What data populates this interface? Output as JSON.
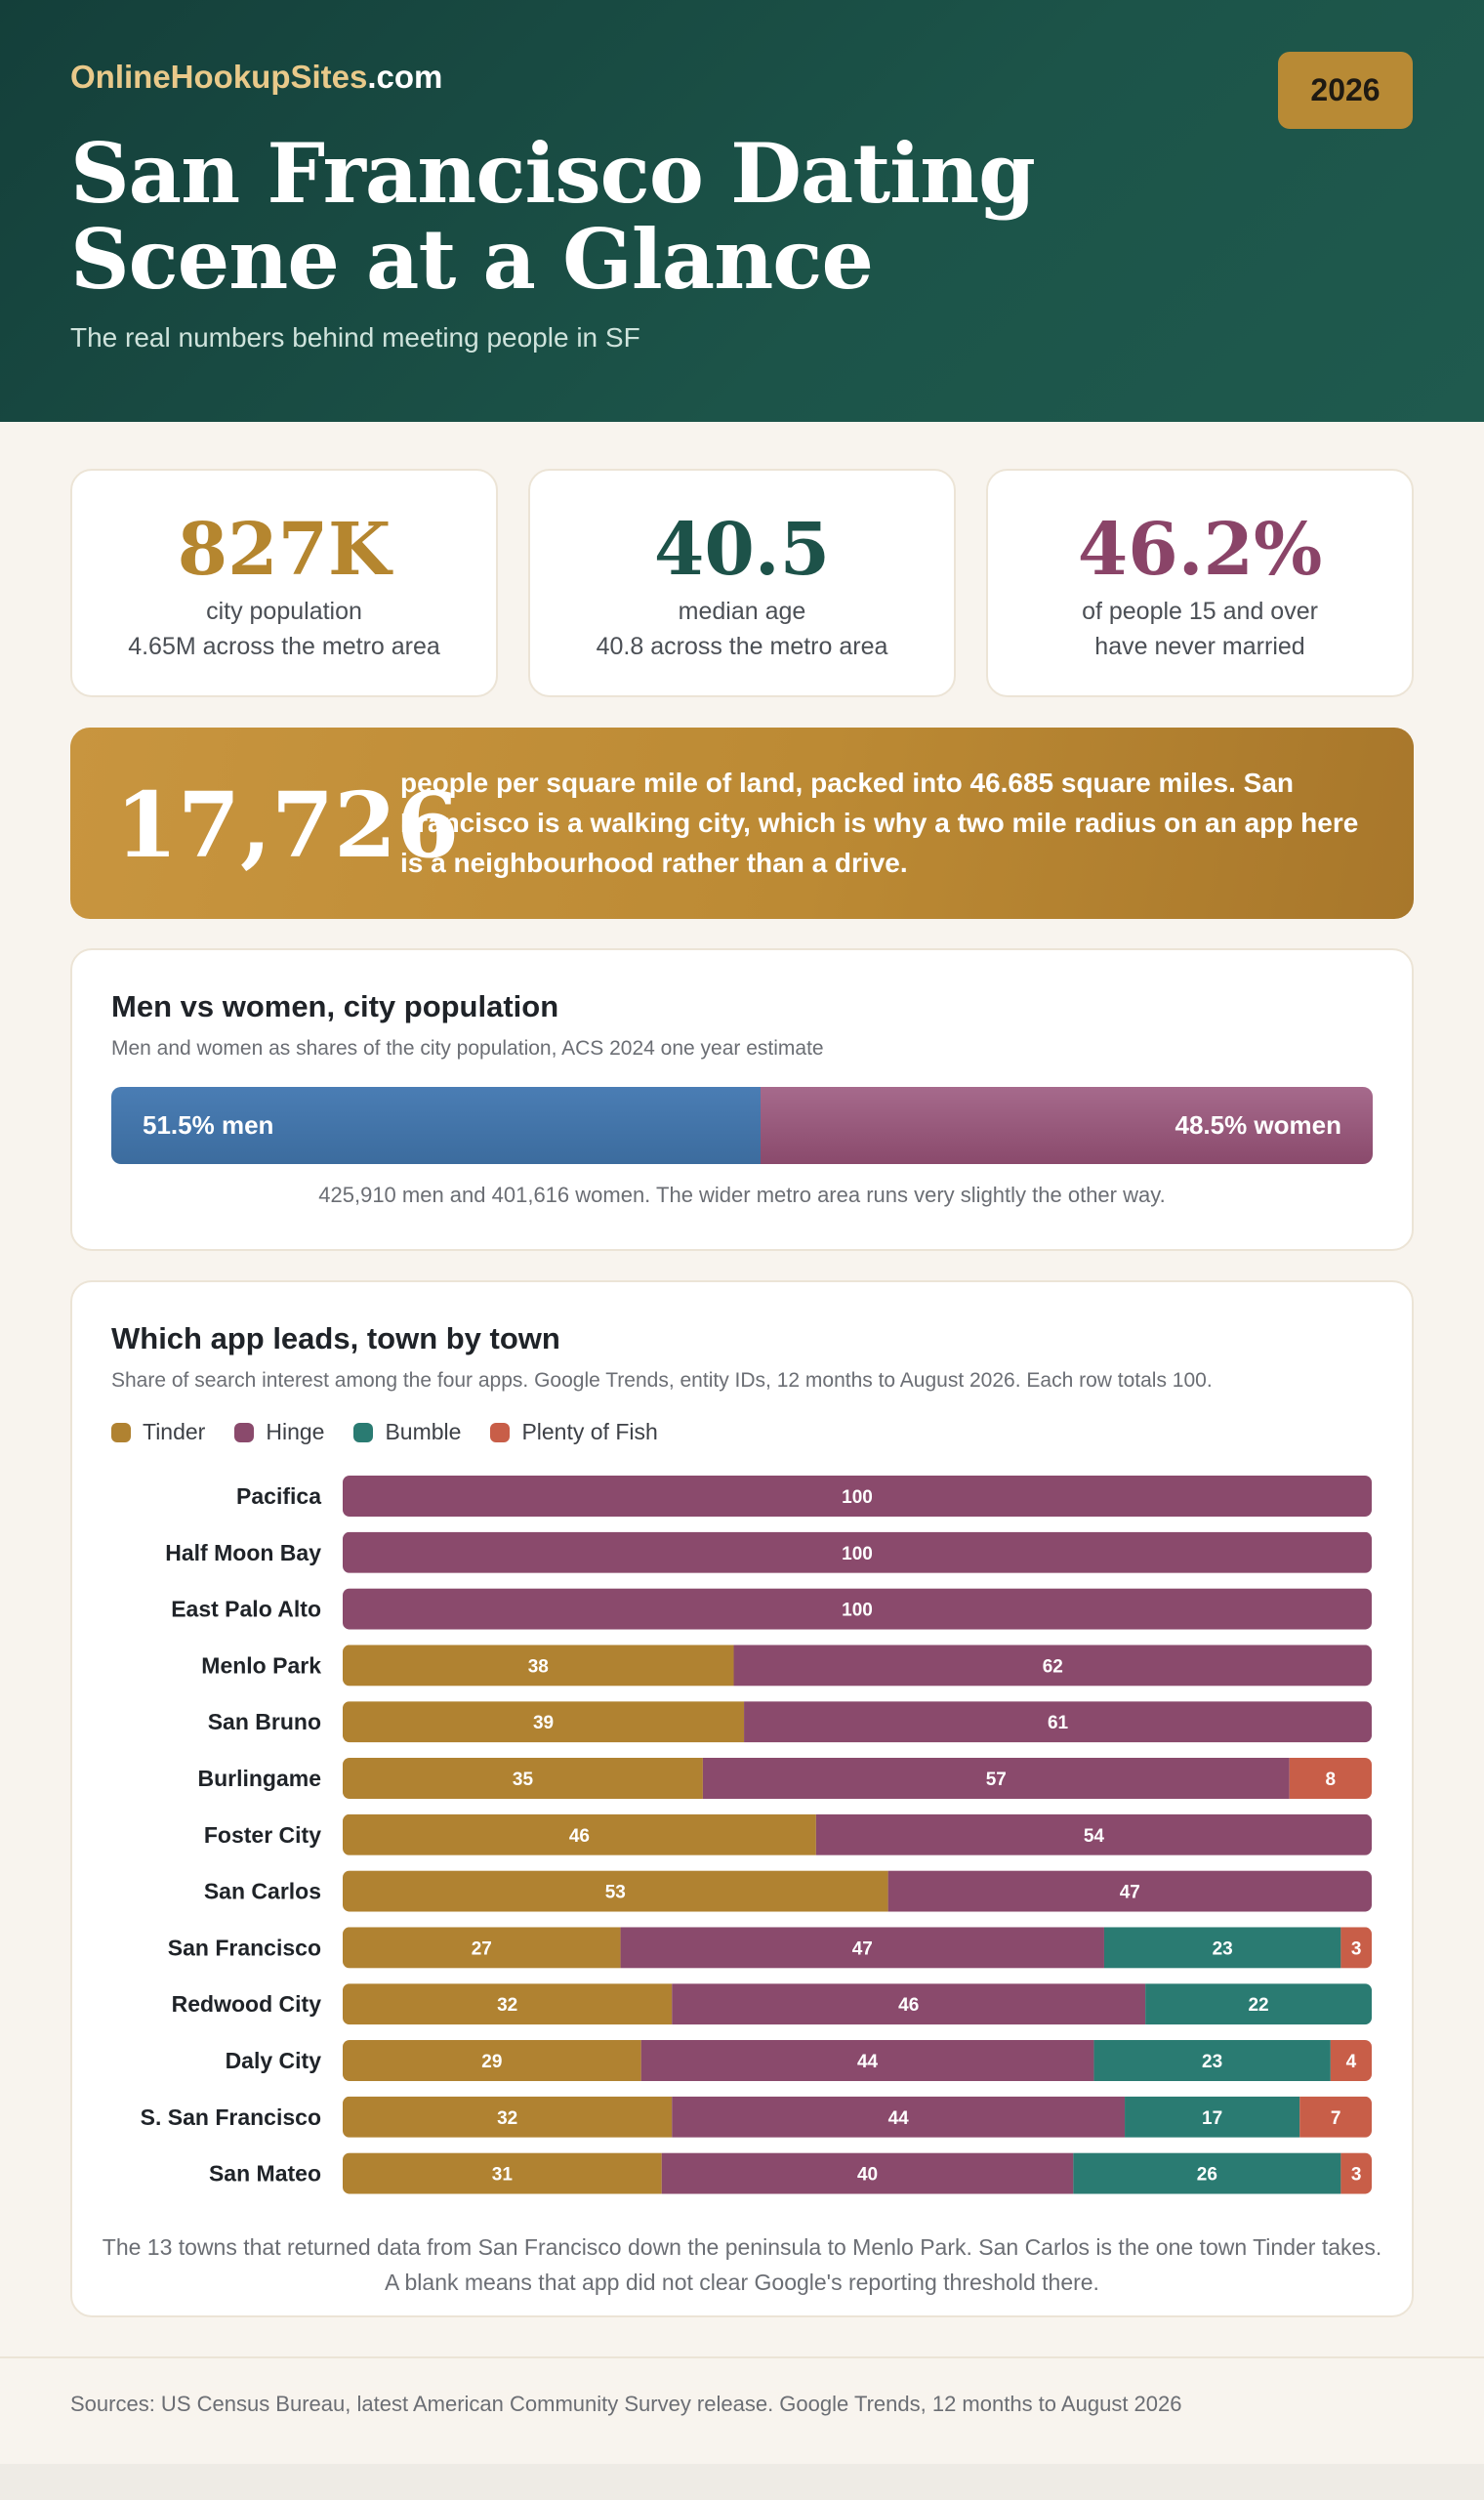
{
  "header": {
    "brand_main": "OnlineHookupSites",
    "brand_suffix": ".com",
    "year": "2026",
    "title_line1": "San Francisco Dating",
    "title_line2": "Scene at a Glance",
    "subtitle": "The real numbers behind meeting people in SF"
  },
  "stats": [
    {
      "value": "827K",
      "line1": "city population",
      "line2": "4.65M across the metro area",
      "color": "#b5862f"
    },
    {
      "value": "40.5",
      "line1": "median age",
      "line2": "40.8 across the metro area",
      "color": "#1d5249"
    },
    {
      "value": "46.2%",
      "line1": "of people 15 and over",
      "line2": "have never married",
      "color": "#8a4468"
    }
  ],
  "density": {
    "value": "17,726",
    "text": "people per square mile of land, packed into 46.685 square miles. San Francisco is a walking city, which is why a two mile radius on an app here is a neighbourhood rather than a drive."
  },
  "gender": {
    "title": "Men vs women, city population",
    "subtitle": "Men and women as shares of the city population, ACS 2024 one year estimate",
    "men_share": 51.5,
    "women_share": 48.5,
    "men_label": "51.5% men",
    "women_label": "48.5% women",
    "note": "425,910 men and 401,616 women. The wider metro area runs very slightly the other way."
  },
  "apps": {
    "title": "Which app leads, town by town",
    "subtitle": "Share of search interest among the four apps. Google Trends, entity IDs, 12 months to August 2026. Each row totals 100.",
    "note_line1": "The 13 towns that returned data from San Francisco down the peninsula to Menlo Park. San Carlos is the one town Tinder takes.",
    "note_line2": "A blank means that app did not clear Google's reporting threshold there."
  },
  "chart_data": {
    "type": "bar",
    "orientation": "horizontal",
    "stacked": true,
    "categories": [
      "Pacifica",
      "Half Moon Bay",
      "East Palo Alto",
      "Menlo Park",
      "San Bruno",
      "Burlingame",
      "Foster City",
      "San Carlos",
      "San Francisco",
      "Redwood City",
      "Daly City",
      "S. San Francisco",
      "San Mateo"
    ],
    "series": [
      {
        "name": "Tinder",
        "color": "#b08231",
        "values": [
          null,
          null,
          null,
          38,
          39,
          35,
          46,
          53,
          27,
          32,
          29,
          32,
          31
        ]
      },
      {
        "name": "Hinge",
        "color": "#8a4a6c",
        "values": [
          100,
          100,
          100,
          62,
          61,
          57,
          54,
          47,
          47,
          46,
          44,
          44,
          40
        ]
      },
      {
        "name": "Bumble",
        "color": "#2a7b72",
        "values": [
          null,
          null,
          null,
          null,
          null,
          null,
          null,
          null,
          23,
          22,
          23,
          17,
          26
        ]
      },
      {
        "name": "Plenty of Fish",
        "color": "#c85e48",
        "values": [
          null,
          null,
          null,
          null,
          null,
          8,
          null,
          null,
          3,
          null,
          4,
          7,
          3
        ]
      }
    ],
    "xlim": [
      0,
      100
    ],
    "legend": "top-left"
  },
  "footer": {
    "sources": "Sources: US Census Bureau, latest American Community Survey release. Google Trends, 12 months to August 2026"
  }
}
